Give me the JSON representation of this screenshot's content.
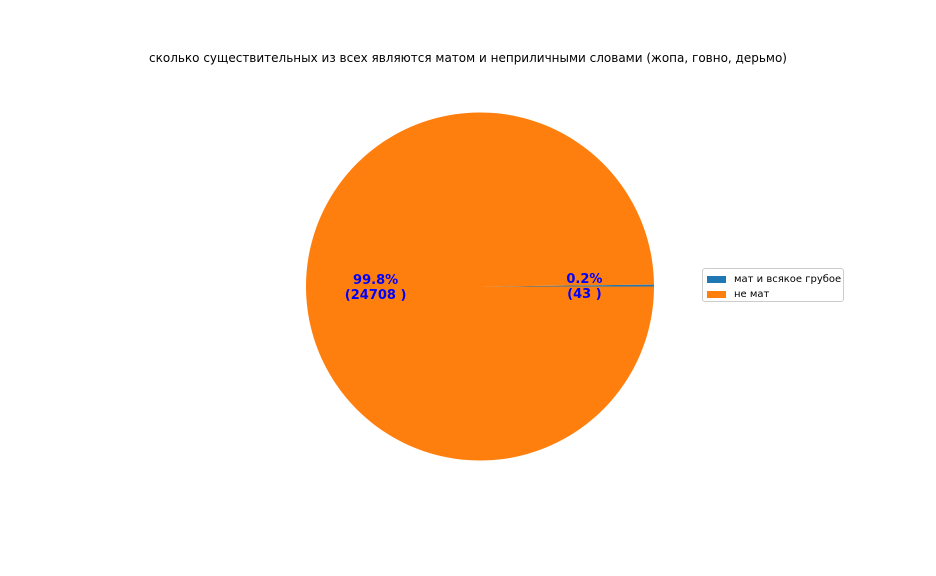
{
  "chart_data": {
    "type": "pie",
    "title": "сколько существительных из всех являются матом и неприличными словами (жопа, говно, дерьмо)",
    "slices": [
      {
        "label": "мат и всякое грубое",
        "value": 43,
        "pct_label": "0.2%",
        "count_label": "(43 )",
        "color": "#1f77b4"
      },
      {
        "label": "не мат",
        "value": 24708,
        "pct_label": "99.8%",
        "count_label": "(24708 )",
        "color": "#ff7f0e"
      }
    ],
    "label_color": "#0000ff",
    "legend_position": "right"
  }
}
